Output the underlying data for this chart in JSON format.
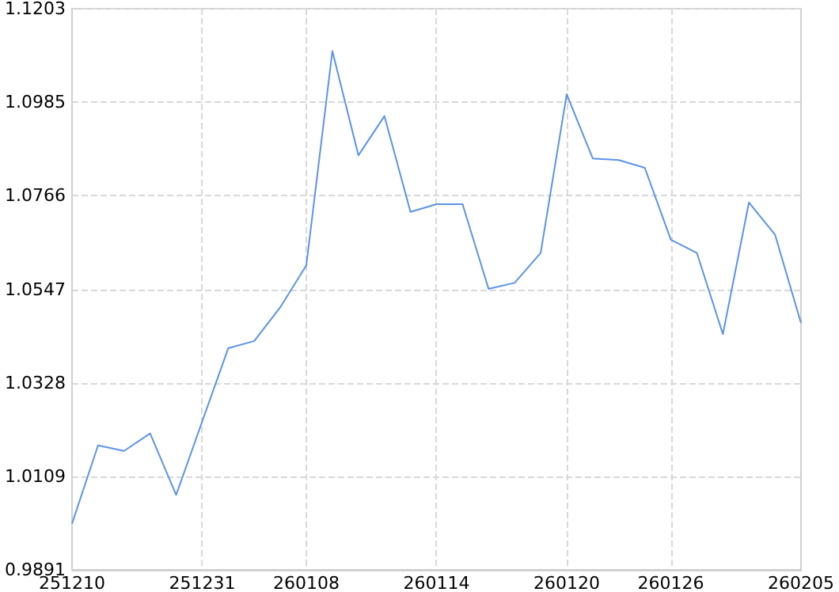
{
  "chart_data": {
    "type": "line",
    "categories": [
      "251210",
      null,
      null,
      null,
      null,
      "251231",
      null,
      null,
      null,
      "260108",
      null,
      null,
      null,
      null,
      "260114",
      null,
      null,
      null,
      null,
      "260120",
      null,
      null,
      null,
      "260126",
      null,
      null,
      null,
      null,
      "260205"
    ],
    "series": [
      {
        "color": "#5b93e8",
        "values": [
          0.9999,
          1.0182,
          1.0169,
          1.021,
          1.0066,
          1.0238,
          1.0409,
          1.0426,
          1.0505,
          1.0603,
          1.1104,
          1.086,
          1.0952,
          1.0728,
          1.0746,
          1.0746,
          1.0548,
          1.0562,
          1.0632,
          1.1003,
          1.0853,
          1.0849,
          1.0831,
          1.0663,
          1.0632,
          1.0442,
          1.075,
          1.0675,
          1.0468
        ]
      }
    ],
    "ylim": [
      0.9891,
      1.1203
    ],
    "yticks": [
      0.9891,
      1.0109,
      1.0328,
      1.0547,
      1.0766,
      1.0985,
      1.1203
    ],
    "grid": true,
    "marker": "none",
    "line_style": "solid"
  }
}
